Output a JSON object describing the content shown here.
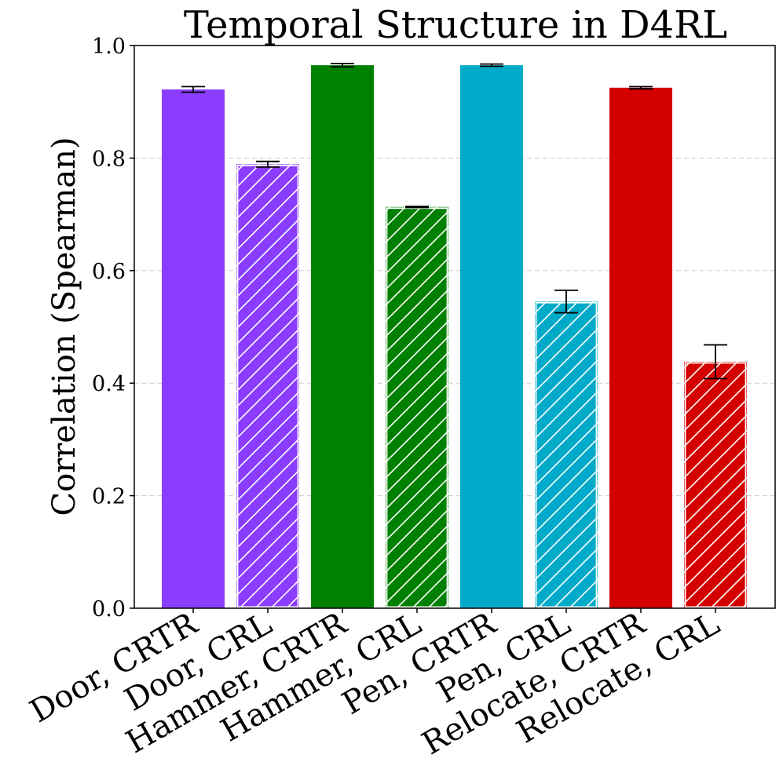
{
  "chart_data": {
    "type": "bar",
    "title": "Temporal Structure in D4RL",
    "xlabel": "",
    "ylabel": "Correlation (Spearman)",
    "ylim": [
      0,
      1.0
    ],
    "yticks": [
      "0.0",
      "0.2",
      "0.4",
      "0.6",
      "0.8",
      "1.0"
    ],
    "grid": "y-dashed",
    "categories": [
      "Door, CRTR",
      "Door, CRL",
      "Hammer, CRTR",
      "Hammer, CRL",
      "Pen, CRTR",
      "Pen, CRL",
      "Relocate, CRTR",
      "Relocate, CRL"
    ],
    "values": [
      0.922,
      0.789,
      0.965,
      0.713,
      0.965,
      0.545,
      0.925,
      0.438
    ],
    "errors": [
      0.005,
      0.005,
      0.003,
      0.001,
      0.002,
      0.02,
      0.002,
      0.03
    ],
    "colors": [
      "#8B3DFF",
      "#8B3DFF",
      "#008000",
      "#008000",
      "#00AAC8",
      "#00AAC8",
      "#D40000",
      "#D40000"
    ],
    "hatched": [
      false,
      true,
      false,
      true,
      false,
      true,
      false,
      true
    ]
  }
}
